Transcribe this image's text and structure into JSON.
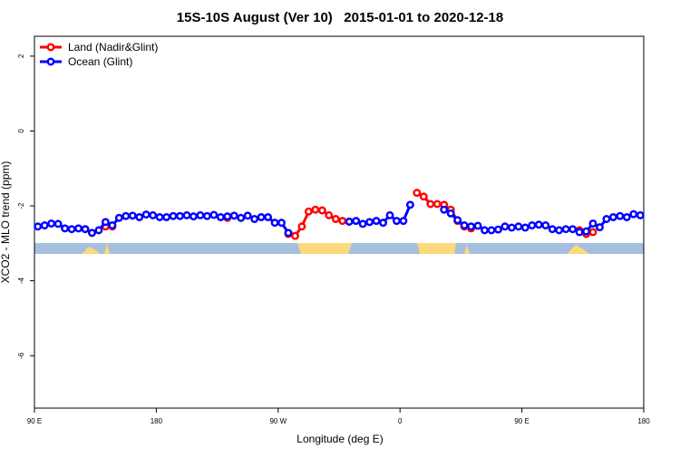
{
  "chart_data": {
    "type": "line",
    "title": "15S-10S August (Ver 10)   2015-01-01 to 2020-12-18",
    "x_label": "Longitude (deg E)",
    "y_label": "XCO2 - MLO trend (ppm)",
    "xlim": [
      90,
      540
    ],
    "ylim": [
      -7.4,
      2.53
    ],
    "xticks": [
      {
        "value": 90,
        "label": "90 E"
      },
      180,
      {
        "value": 270,
        "label": "90 W"
      },
      {
        "value": 360,
        "label": "0"
      },
      {
        "value": 450,
        "label": "90 E"
      },
      {
        "value": 540,
        "label": "180"
      }
    ],
    "yticks": [
      -6,
      -4,
      -2,
      0,
      2
    ],
    "legend": "top-left",
    "x": [
      92.5,
      97.5,
      102.5,
      107.5,
      112.5,
      117.5,
      122.5,
      127.5,
      132.5,
      137.5,
      142.5,
      147.5,
      152.5,
      157.5,
      162.5,
      167.5,
      172.5,
      177.5,
      182.5,
      187.5,
      192.5,
      197.5,
      202.5,
      207.5,
      212.5,
      217.5,
      222.5,
      227.5,
      232.5,
      237.5,
      242.5,
      247.5,
      252.5,
      257.5,
      262.5,
      267.5,
      272.5,
      277.5,
      282.5,
      287.5,
      292.5,
      297.5,
      302.5,
      307.5,
      312.5,
      317.5,
      322.5,
      327.5,
      332.5,
      337.5,
      342.5,
      347.5,
      352.5,
      357.5,
      362.5,
      367.5,
      372.5,
      377.5,
      382.5,
      387.5,
      392.5,
      397.5,
      402.5,
      407.5,
      412.5,
      417.5,
      422.5,
      427.5,
      432.5,
      437.5,
      442.5,
      447.5,
      452.5,
      457.5,
      462.5,
      467.5,
      472.5,
      477.5,
      482.5,
      487.5,
      492.5,
      497.5,
      502.5,
      507.5,
      512.5,
      517.5,
      522.5,
      527.5,
      532.5,
      537.5
    ],
    "series": [
      {
        "name": "Land (Nadir&Glint)",
        "color": "#ff0000",
        "values": [
          null,
          null,
          null,
          null,
          null,
          null,
          null,
          -2.62,
          -2.72,
          null,
          -2.55,
          -2.55,
          null,
          null,
          null,
          null,
          null,
          null,
          null,
          null,
          null,
          null,
          null,
          null,
          null,
          null,
          null,
          null,
          -2.32,
          null,
          null,
          null,
          null,
          null,
          null,
          null,
          null,
          -2.75,
          -2.8,
          -2.55,
          -2.15,
          -2.1,
          -2.12,
          -2.25,
          -2.35,
          -2.4,
          -2.42,
          null,
          null,
          null,
          null,
          null,
          null,
          null,
          null,
          null,
          -1.65,
          -1.75,
          -1.95,
          -1.95,
          -1.97,
          -2.1,
          -2.4,
          -2.55,
          -2.6,
          null,
          null,
          null,
          null,
          null,
          null,
          null,
          null,
          null,
          null,
          null,
          null,
          null,
          null,
          null,
          -2.65,
          -2.75,
          -2.7,
          null,
          null,
          null,
          null,
          null,
          null,
          null
        ]
      },
      {
        "name": "Ocean (Glint)",
        "color": "#0000ff",
        "values": [
          -2.55,
          -2.52,
          -2.47,
          -2.48,
          -2.6,
          -2.62,
          -2.6,
          -2.62,
          -2.72,
          -2.65,
          -2.43,
          -2.52,
          -2.32,
          -2.27,
          -2.26,
          -2.3,
          -2.23,
          -2.25,
          -2.3,
          -2.3,
          -2.27,
          -2.27,
          -2.25,
          -2.28,
          -2.25,
          -2.27,
          -2.24,
          -2.3,
          -2.28,
          -2.26,
          -2.32,
          -2.26,
          -2.35,
          -2.3,
          -2.3,
          -2.45,
          -2.45,
          -2.72,
          null,
          null,
          null,
          null,
          null,
          null,
          null,
          null,
          -2.42,
          -2.4,
          -2.48,
          -2.43,
          -2.4,
          -2.45,
          -2.25,
          -2.4,
          -2.4,
          -1.97,
          null,
          null,
          null,
          null,
          -2.1,
          -2.2,
          -2.38,
          -2.52,
          -2.55,
          -2.53,
          -2.65,
          -2.65,
          -2.63,
          -2.55,
          -2.58,
          -2.55,
          -2.58,
          -2.52,
          -2.5,
          -2.52,
          -2.62,
          -2.65,
          -2.62,
          -2.62,
          -2.7,
          -2.68,
          -2.47,
          -2.57,
          -2.35,
          -2.3,
          -2.27,
          -2.3,
          -2.22,
          -2.25
        ]
      }
    ]
  }
}
